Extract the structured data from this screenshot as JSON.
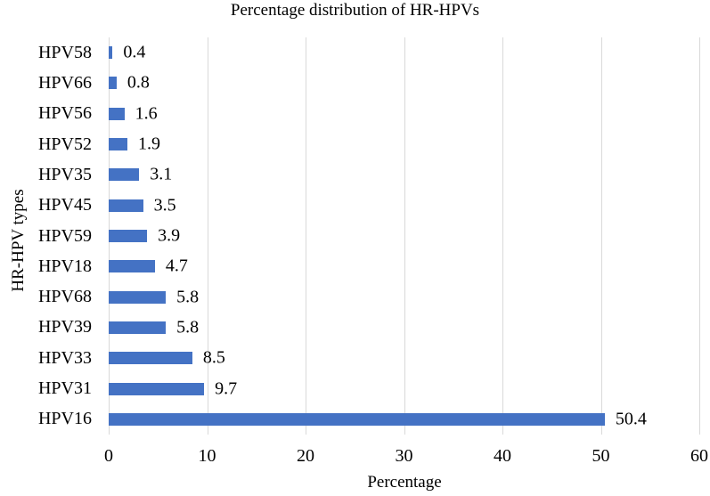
{
  "chart_data": {
    "type": "bar",
    "orientation": "horizontal",
    "title": "Percentage distribution of HR-HPVs",
    "xlabel": "Percentage",
    "ylabel": "HR-HPV types",
    "categories": [
      "HPV58",
      "HPV66",
      "HPV56",
      "HPV52",
      "HPV35",
      "HPV45",
      "HPV59",
      "HPV18",
      "HPV68",
      "HPV39",
      "HPV33",
      "HPV31",
      "HPV16"
    ],
    "values": [
      0.4,
      0.8,
      1.6,
      1.9,
      3.1,
      3.5,
      3.9,
      4.7,
      5.8,
      5.8,
      8.5,
      9.7,
      50.4
    ],
    "value_labels": [
      "0.4",
      "0.8",
      "1.6",
      "1.9",
      "3.1",
      "3.5",
      "3.9",
      "4.7",
      "5.8",
      "5.8",
      "8.5",
      "9.7",
      "50.4"
    ],
    "xlim": [
      0,
      60
    ],
    "x_ticks": [
      0,
      10,
      20,
      30,
      40,
      50,
      60
    ],
    "grid": "vertical-gridlines-on",
    "legend": "none",
    "data_labels": "outside-end",
    "colors": {
      "bar": "#4472C4",
      "gridline": "#D9D9D9",
      "text": "#000000",
      "background": "#FFFFFF"
    }
  }
}
